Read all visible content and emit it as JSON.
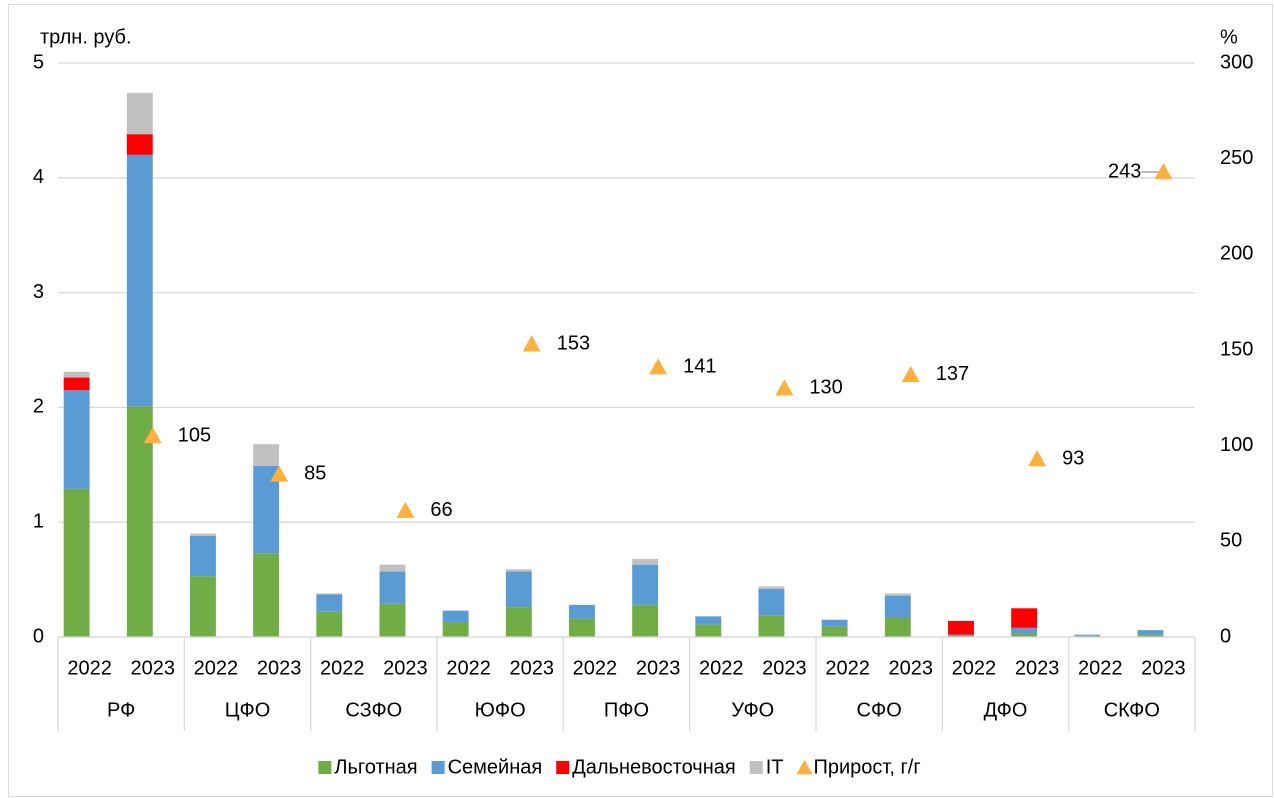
{
  "chart_data": {
    "type": "bar",
    "stacked": true,
    "y_label": "трлн. руб.",
    "y2_label": "%",
    "categories": [
      "2022",
      "2023",
      "2022",
      "2023",
      "2022",
      "2023",
      "2022",
      "2023",
      "2022",
      "2023",
      "2022",
      "2023",
      "2022",
      "2023",
      "2022",
      "2023",
      "2022",
      "2023"
    ],
    "groups": [
      "РФ",
      "ЦФО",
      "СЗФО",
      "ЮФО",
      "ПФО",
      "УФО",
      "СФО",
      "ДФО",
      "СКФО"
    ],
    "series": [
      {
        "name": "Льготная",
        "color": "#70ad47",
        "values": [
          1.29,
          2.01,
          0.53,
          0.73,
          0.22,
          0.29,
          0.13,
          0.26,
          0.16,
          0.28,
          0.11,
          0.19,
          0.09,
          0.17,
          0.01,
          0.03,
          0.01,
          0.02
        ]
      },
      {
        "name": "Семейная",
        "color": "#5b9bd5",
        "values": [
          0.86,
          2.19,
          0.35,
          0.76,
          0.15,
          0.28,
          0.1,
          0.31,
          0.12,
          0.35,
          0.07,
          0.23,
          0.06,
          0.19,
          0.01,
          0.05,
          0.01,
          0.04
        ]
      },
      {
        "name": "Дальневосточная",
        "color": "#ff0000",
        "values": [
          0.11,
          0.18,
          0,
          0,
          0,
          0,
          0,
          0,
          0,
          0,
          0,
          0,
          0,
          0,
          0.12,
          0.17,
          0,
          0
        ]
      },
      {
        "name": "IT",
        "color": "#c0c0c0",
        "values": [
          0.05,
          0.36,
          0.02,
          0.19,
          0.01,
          0.06,
          0,
          0.02,
          0,
          0.05,
          0,
          0.02,
          0,
          0.02,
          0,
          0,
          0,
          0
        ]
      },
      {
        "name": "Прирост, г/г",
        "color": "#fbb040",
        "type": "scatter",
        "marker": "triangle",
        "axis": "y2",
        "values": [
          null,
          105,
          null,
          85,
          null,
          66,
          null,
          153,
          null,
          141,
          null,
          130,
          null,
          137,
          null,
          93,
          null,
          243
        ]
      }
    ],
    "ylim": [
      0,
      5
    ],
    "yticks": [
      0,
      1,
      2,
      3,
      4,
      5
    ],
    "y2lim": [
      0,
      300
    ],
    "y2ticks": [
      0,
      50,
      100,
      150,
      200,
      250,
      300
    ],
    "grid": true,
    "legend": "bottom"
  }
}
